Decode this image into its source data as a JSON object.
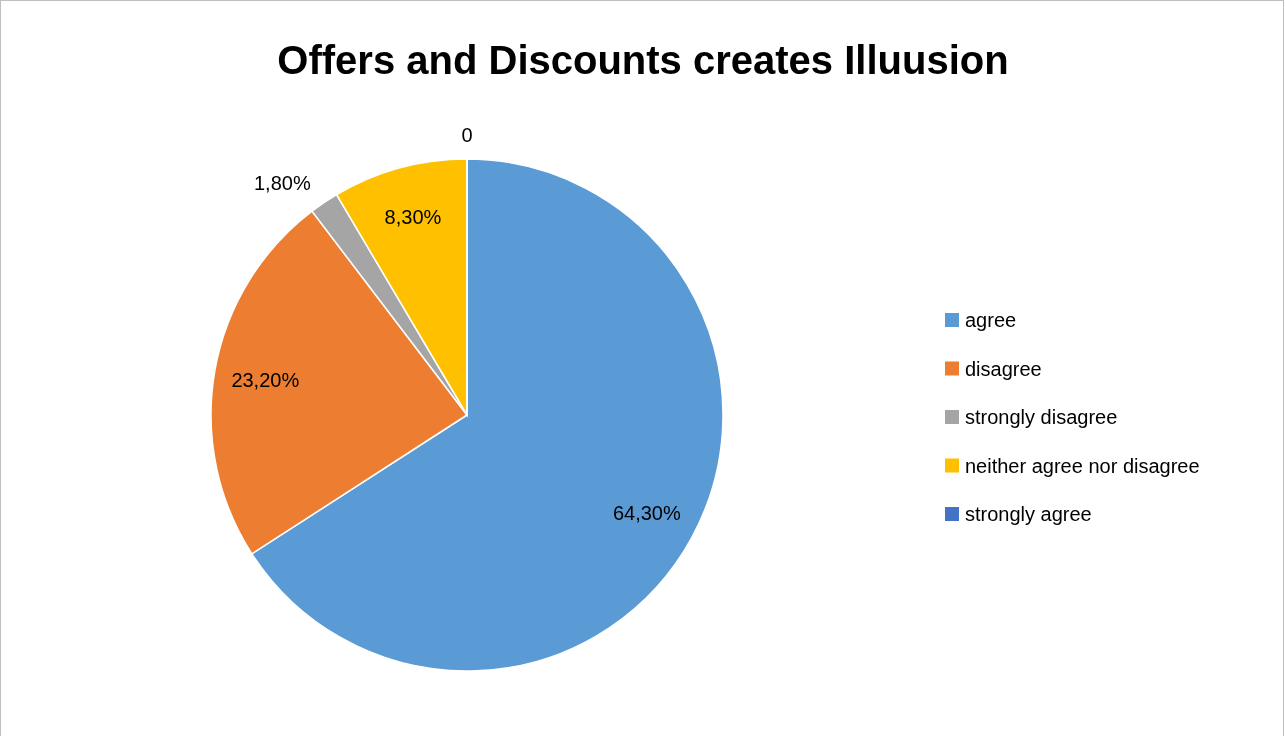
{
  "chart_data": {
    "type": "pie",
    "title": "Offers and Discounts creates Illuusion",
    "categories": [
      "agree",
      "disagree",
      "strongly disagree",
      "neither agree nor disagree",
      "strongly agree"
    ],
    "values": [
      64.3,
      23.2,
      1.8,
      8.3,
      0
    ],
    "value_labels": [
      "64,30%",
      "23,20%",
      "1,80%",
      "8,30%",
      "0"
    ],
    "colors": [
      "#5b9bd5",
      "#ed7d31",
      "#a5a5a5",
      "#ffc000",
      "#4472c4"
    ],
    "legend": "right"
  }
}
